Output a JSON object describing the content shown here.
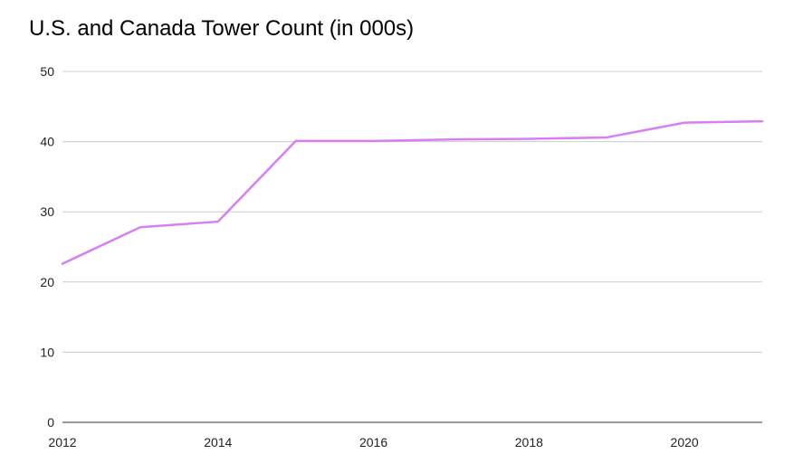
{
  "chart_data": {
    "type": "line",
    "title": "U.S. and Canada Tower Count (in 000s)",
    "xlabel": "",
    "ylabel": "",
    "x": [
      2012,
      2013,
      2014,
      2015,
      2016,
      2017,
      2018,
      2019,
      2020,
      2021
    ],
    "series": [
      {
        "values": [
          22.6,
          27.8,
          28.6,
          40.1,
          40.1,
          40.3,
          40.4,
          40.6,
          42.7,
          42.9
        ]
      }
    ],
    "xlim": [
      2012,
      2021
    ],
    "ylim": [
      0,
      50
    ],
    "x_ticks": [
      "2012",
      "2014",
      "2016",
      "2018",
      "2020"
    ],
    "y_ticks": [
      "0",
      "10",
      "20",
      "30",
      "40",
      "50"
    ],
    "grid": true,
    "legend": "none",
    "line_color": "#d97df5",
    "grid_color": "#cccccc",
    "axis_color": "#333333"
  }
}
